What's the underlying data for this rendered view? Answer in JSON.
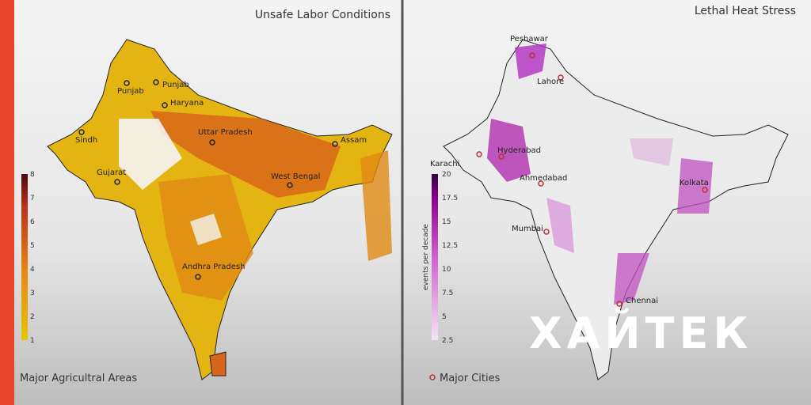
{
  "left_panel": {
    "title": "Unsafe Labor Conditions",
    "colorbar_ticks": [
      "1",
      "2",
      "3",
      "4",
      "5",
      "6",
      "7",
      "8"
    ],
    "regions": [
      "Punjab",
      "Punjab",
      "Haryana",
      "Sindh",
      "Uttar Pradesh",
      "Assam",
      "Gujarat",
      "West Bengal",
      "Andhra Pradesh"
    ],
    "legend": "Major Agricultral Areas"
  },
  "right_panel": {
    "title": "Lethal Heat Stress",
    "colorbar_label": "events per decade",
    "colorbar_ticks": [
      "2.5",
      "5",
      "7.5",
      "10",
      "12.5",
      "15",
      "17.5",
      "20"
    ],
    "cities": [
      "Peshawar",
      "Lahore",
      "Hyderabad",
      "Karachi",
      "Ahmedabad",
      "Mumbai",
      "Kolkata",
      "Chennai"
    ],
    "legend": "Major Cities"
  },
  "watermark": "ХАЙТЕК"
}
